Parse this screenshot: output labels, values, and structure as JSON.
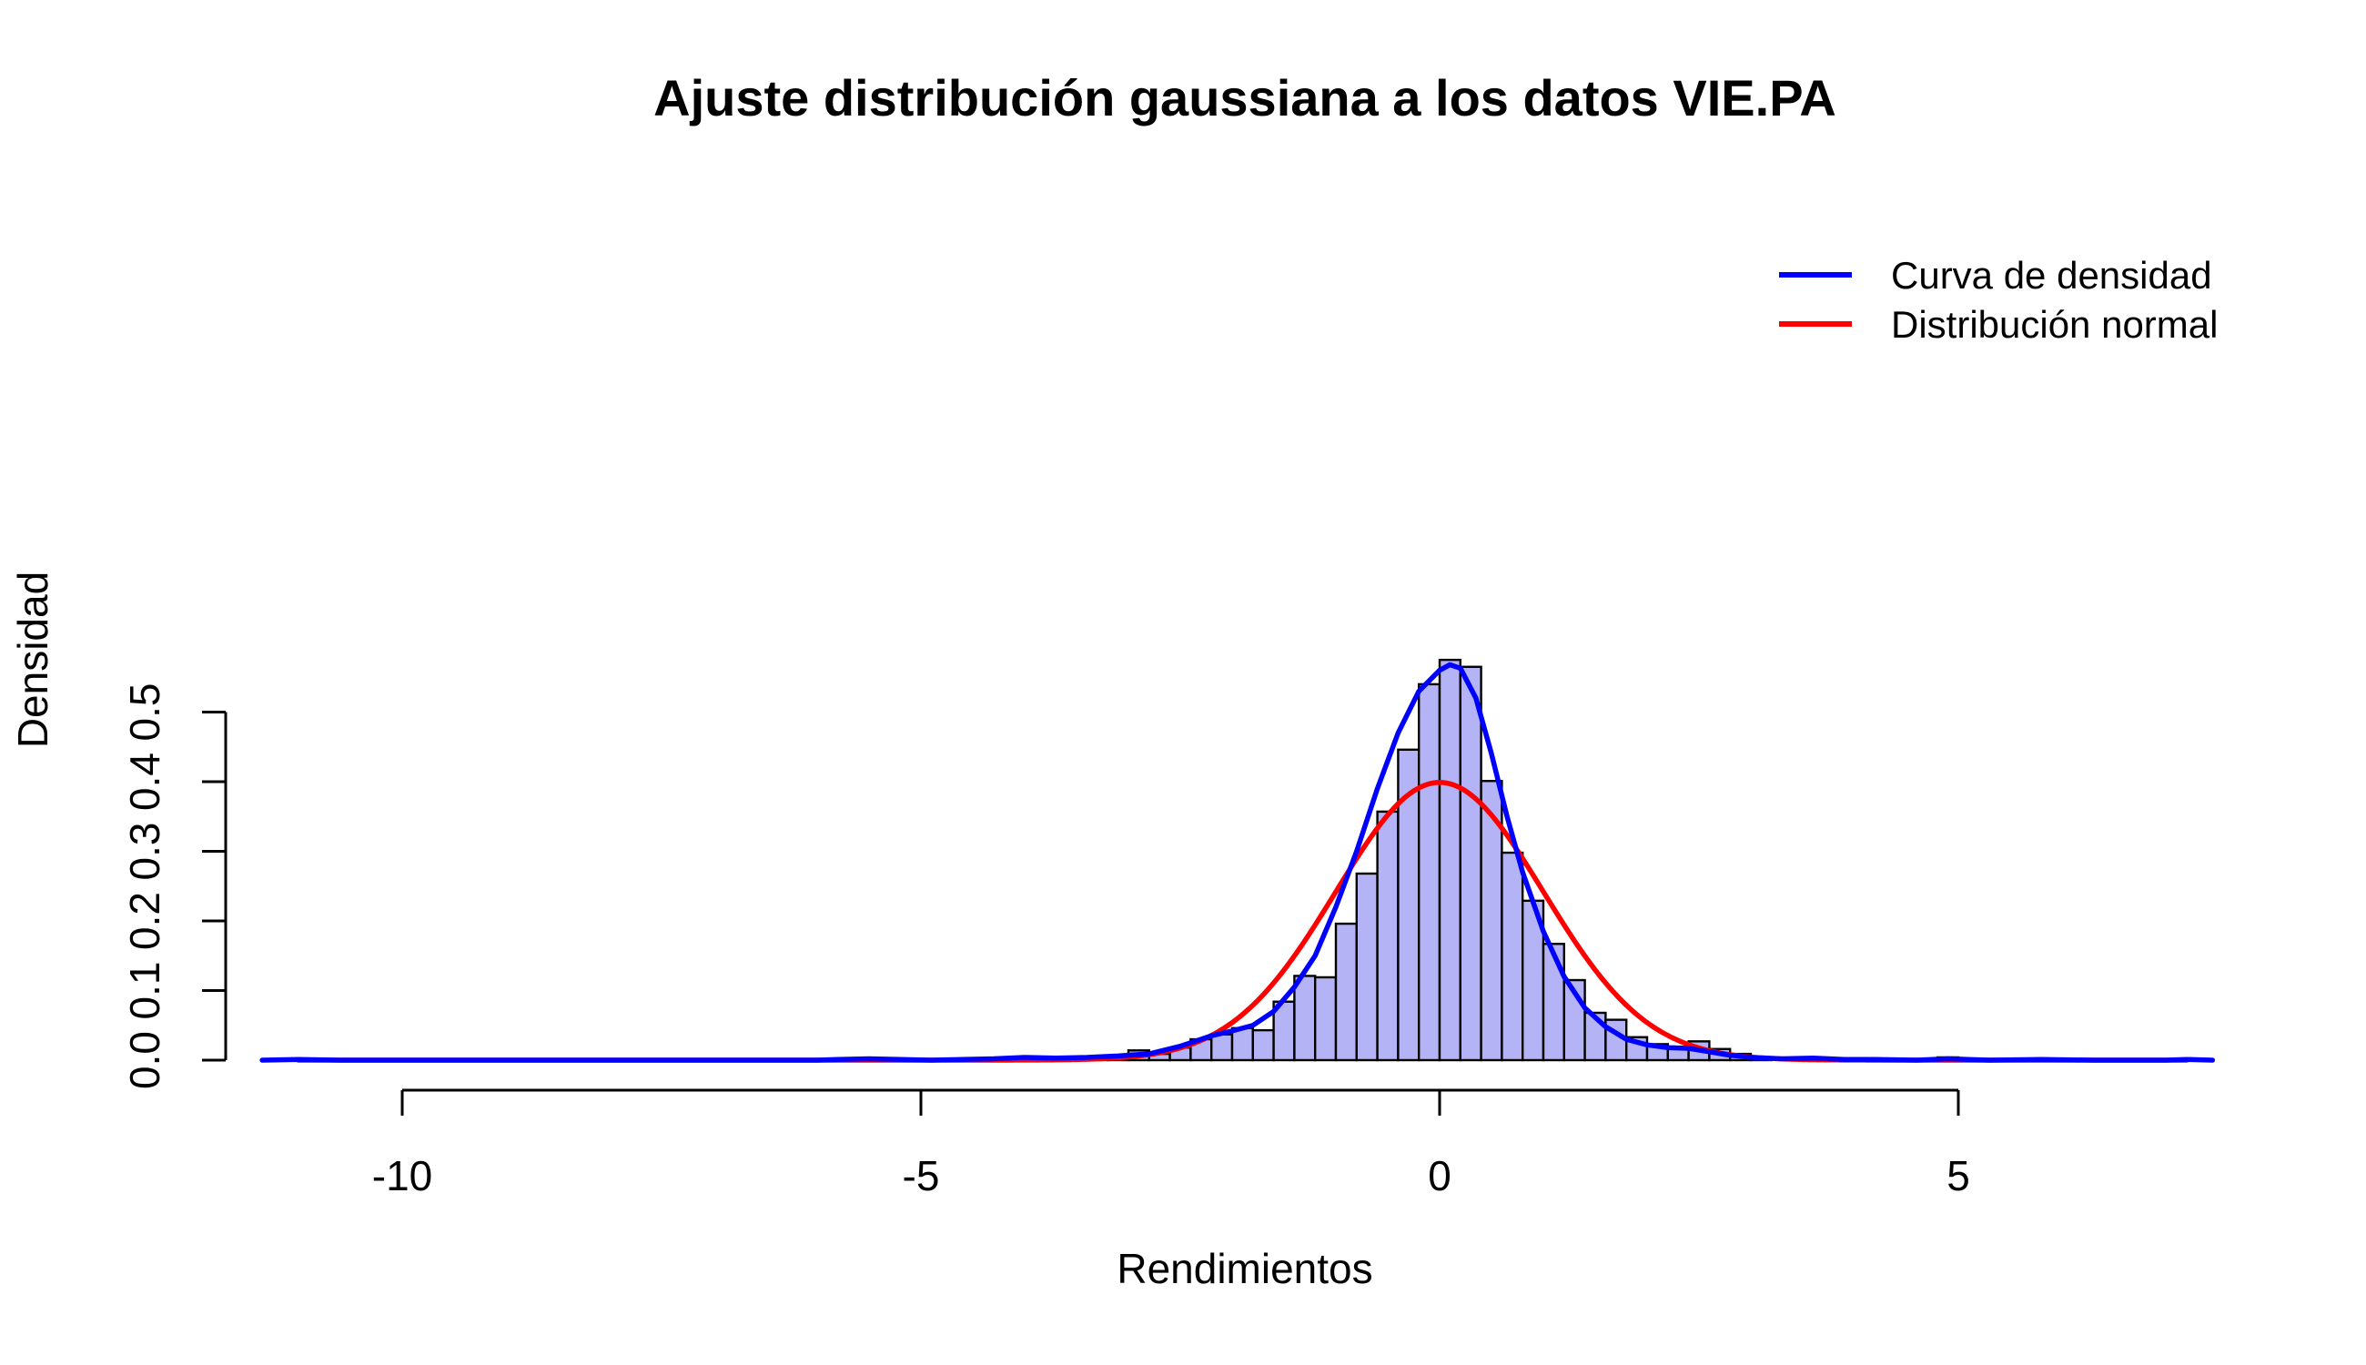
{
  "chart_data": {
    "type": "bar",
    "title": "Ajuste distribución gaussiana a los datos VIE.PA",
    "xlabel": "Rendimientos",
    "ylabel": "Densidad",
    "xlim": [
      -11.5,
      7.75
    ],
    "ylim": [
      0,
      0.59
    ],
    "x_ticks": [
      -10,
      -5,
      0,
      5
    ],
    "x_tick_labels": [
      "-10",
      "-5",
      "0",
      "5"
    ],
    "y_ticks": [
      0,
      0.1,
      0.2,
      0.3,
      0.4,
      0.5
    ],
    "y_tick_labels": [
      "0.0",
      "0.1",
      "0.2",
      "0.3",
      "0.4",
      "0.5"
    ],
    "grid": false,
    "legend_position": "top-right",
    "colors": {
      "histogram_fill": "#b3b3f5",
      "histogram_border": "#000000",
      "density": "#0000ff",
      "normal": "#ff0000"
    },
    "histogram": {
      "bin_width": 0.2,
      "bins": [
        [
          -5.6,
          0.002
        ],
        [
          -4.6,
          0.002
        ],
        [
          -4.4,
          0.002
        ],
        [
          -4.2,
          0.002
        ],
        [
          -4.0,
          0.004
        ],
        [
          -3.8,
          0.004
        ],
        [
          -3.6,
          0.002
        ],
        [
          -3.4,
          0.002
        ],
        [
          -3.2,
          0.004
        ],
        [
          -3.0,
          0.014
        ],
        [
          -2.8,
          0.009
        ],
        [
          -2.6,
          0.018
        ],
        [
          -2.4,
          0.03
        ],
        [
          -2.2,
          0.037
        ],
        [
          -2.0,
          0.046
        ],
        [
          -1.8,
          0.043
        ],
        [
          -1.6,
          0.084
        ],
        [
          -1.4,
          0.121
        ],
        [
          -1.2,
          0.119
        ],
        [
          -1.0,
          0.196
        ],
        [
          -0.8,
          0.268
        ],
        [
          -0.6,
          0.357
        ],
        [
          -0.4,
          0.446
        ],
        [
          -0.2,
          0.54
        ],
        [
          0.0,
          0.575
        ],
        [
          0.2,
          0.565
        ],
        [
          0.4,
          0.401
        ],
        [
          0.6,
          0.298
        ],
        [
          0.8,
          0.229
        ],
        [
          1.0,
          0.167
        ],
        [
          1.2,
          0.115
        ],
        [
          1.4,
          0.068
        ],
        [
          1.6,
          0.058
        ],
        [
          1.8,
          0.033
        ],
        [
          2.0,
          0.023
        ],
        [
          2.2,
          0.018
        ],
        [
          2.4,
          0.027
        ],
        [
          2.6,
          0.016
        ],
        [
          2.8,
          0.009
        ],
        [
          3.0,
          0.002
        ],
        [
          3.4,
          0.004
        ],
        [
          3.6,
          0.002
        ],
        [
          3.8,
          0.002
        ],
        [
          4.0,
          0.002
        ],
        [
          4.8,
          0.004
        ],
        [
          5.6,
          0.002
        ]
      ]
    },
    "series": [
      {
        "name": "Curva de densidad",
        "color": "#0000ff",
        "points": [
          [
            -11.35,
            0.0
          ],
          [
            -11.0,
            0.001
          ],
          [
            -10.6,
            0.0
          ],
          [
            -9.0,
            0.0
          ],
          [
            -7.0,
            0.0
          ],
          [
            -6.0,
            0.0
          ],
          [
            -5.8,
            0.001
          ],
          [
            -5.5,
            0.002
          ],
          [
            -5.2,
            0.001
          ],
          [
            -4.9,
            0.0
          ],
          [
            -4.6,
            0.001
          ],
          [
            -4.3,
            0.002
          ],
          [
            -4.0,
            0.004
          ],
          [
            -3.7,
            0.003
          ],
          [
            -3.4,
            0.004
          ],
          [
            -3.1,
            0.006
          ],
          [
            -2.8,
            0.009
          ],
          [
            -2.5,
            0.02
          ],
          [
            -2.2,
            0.035
          ],
          [
            -2.0,
            0.042
          ],
          [
            -1.8,
            0.05
          ],
          [
            -1.6,
            0.07
          ],
          [
            -1.4,
            0.105
          ],
          [
            -1.2,
            0.15
          ],
          [
            -1.0,
            0.22
          ],
          [
            -0.8,
            0.3
          ],
          [
            -0.6,
            0.39
          ],
          [
            -0.4,
            0.47
          ],
          [
            -0.2,
            0.53
          ],
          [
            0.0,
            0.56
          ],
          [
            0.1,
            0.568
          ],
          [
            0.2,
            0.563
          ],
          [
            0.35,
            0.52
          ],
          [
            0.5,
            0.44
          ],
          [
            0.65,
            0.35
          ],
          [
            0.8,
            0.27
          ],
          [
            1.0,
            0.185
          ],
          [
            1.2,
            0.12
          ],
          [
            1.4,
            0.075
          ],
          [
            1.6,
            0.048
          ],
          [
            1.8,
            0.03
          ],
          [
            2.0,
            0.022
          ],
          [
            2.2,
            0.018
          ],
          [
            2.4,
            0.017
          ],
          [
            2.6,
            0.012
          ],
          [
            2.8,
            0.007
          ],
          [
            3.0,
            0.004
          ],
          [
            3.3,
            0.002
          ],
          [
            3.6,
            0.003
          ],
          [
            3.9,
            0.001
          ],
          [
            4.2,
            0.001
          ],
          [
            4.6,
            0.0
          ],
          [
            4.9,
            0.002
          ],
          [
            5.3,
            0.0
          ],
          [
            5.8,
            0.001
          ],
          [
            6.3,
            0.0
          ],
          [
            7.0,
            0.0
          ],
          [
            7.2,
            0.001
          ],
          [
            7.45,
            0.0
          ]
        ]
      },
      {
        "name": "Distribución normal",
        "color": "#ff0000",
        "mean": 0.0,
        "sd": 1.0,
        "domain": [
          -11.0,
          7.2
        ]
      }
    ]
  }
}
